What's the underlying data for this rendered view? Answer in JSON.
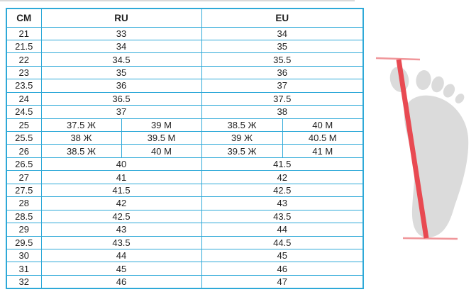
{
  "chart_data": {
    "type": "table",
    "columns": [
      "CM",
      "RU",
      "EU"
    ],
    "rows": [
      {
        "cm": "21",
        "ru": [
          "33"
        ],
        "eu": [
          "34"
        ]
      },
      {
        "cm": "21.5",
        "ru": [
          "34"
        ],
        "eu": [
          "35"
        ]
      },
      {
        "cm": "22",
        "ru": [
          "34.5"
        ],
        "eu": [
          "35.5"
        ]
      },
      {
        "cm": "23",
        "ru": [
          "35"
        ],
        "eu": [
          "36"
        ]
      },
      {
        "cm": "23.5",
        "ru": [
          "36"
        ],
        "eu": [
          "37"
        ]
      },
      {
        "cm": "24",
        "ru": [
          "36.5"
        ],
        "eu": [
          "37.5"
        ]
      },
      {
        "cm": "24.5",
        "ru": [
          "37"
        ],
        "eu": [
          "38"
        ]
      },
      {
        "cm": "25",
        "ru": [
          "37.5 Ж",
          "39 М"
        ],
        "eu": [
          "38.5 Ж",
          "40 М"
        ]
      },
      {
        "cm": "25.5",
        "ru": [
          "38 Ж",
          "39.5 М"
        ],
        "eu": [
          "39 Ж",
          "40.5 М"
        ]
      },
      {
        "cm": "26",
        "ru": [
          "38.5 Ж",
          "40 М"
        ],
        "eu": [
          "39.5 Ж",
          "41 М"
        ]
      },
      {
        "cm": "26.5",
        "ru": [
          "40"
        ],
        "eu": [
          "41.5"
        ]
      },
      {
        "cm": "27",
        "ru": [
          "41"
        ],
        "eu": [
          "42"
        ]
      },
      {
        "cm": "27.5",
        "ru": [
          "41.5"
        ],
        "eu": [
          "42.5"
        ]
      },
      {
        "cm": "28",
        "ru": [
          "42"
        ],
        "eu": [
          "43"
        ]
      },
      {
        "cm": "28.5",
        "ru": [
          "42.5"
        ],
        "eu": [
          "43.5"
        ]
      },
      {
        "cm": "29",
        "ru": [
          "43"
        ],
        "eu": [
          "44"
        ]
      },
      {
        "cm": "29.5",
        "ru": [
          "43.5"
        ],
        "eu": [
          "44.5"
        ]
      },
      {
        "cm": "30",
        "ru": [
          "44"
        ],
        "eu": [
          "45"
        ]
      },
      {
        "cm": "31",
        "ru": [
          "45"
        ],
        "eu": [
          "46"
        ]
      },
      {
        "cm": "32",
        "ru": [
          "46"
        ],
        "eu": [
          "47"
        ]
      }
    ]
  },
  "colors": {
    "table_border": "#2ea9d8",
    "text": "#1f1f1f",
    "foot": "#dbdbdb",
    "measure_line": "#e84a52",
    "crossbar": "#f0969a",
    "top_divider": "#d9d9d9",
    "background": "#ffffff"
  },
  "illustration": {
    "name": "foot-length-measurement"
  }
}
